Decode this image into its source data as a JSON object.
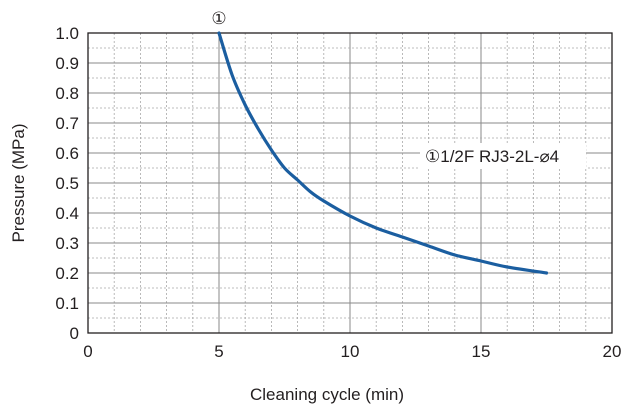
{
  "chart_data": {
    "type": "line",
    "title": "",
    "xlabel": "Cleaning cycle (min)",
    "ylabel": "Pressure (MPa)",
    "xlim": [
      0,
      20
    ],
    "ylim": [
      0,
      1.0
    ],
    "x_ticks": [
      "0",
      "5",
      "10",
      "15",
      "20"
    ],
    "y_ticks": [
      "0",
      "0.1",
      "0.2",
      "0.3",
      "0.4",
      "0.5",
      "0.6",
      "0.7",
      "0.8",
      "0.9",
      "1.0"
    ],
    "grid": "dotted minor, solid major",
    "series": [
      {
        "name": "①1/2F RJ3-2L-⌀4",
        "color": "#1b5ea0",
        "points": [
          {
            "x": 5.0,
            "y": 1.0
          },
          {
            "x": 5.5,
            "y": 0.86
          },
          {
            "x": 6.0,
            "y": 0.76
          },
          {
            "x": 6.5,
            "y": 0.68
          },
          {
            "x": 7.0,
            "y": 0.61
          },
          {
            "x": 7.5,
            "y": 0.55
          },
          {
            "x": 8.0,
            "y": 0.51
          },
          {
            "x": 8.5,
            "y": 0.47
          },
          {
            "x": 9.0,
            "y": 0.44
          },
          {
            "x": 10.0,
            "y": 0.39
          },
          {
            "x": 11.0,
            "y": 0.35
          },
          {
            "x": 12.0,
            "y": 0.32
          },
          {
            "x": 13.0,
            "y": 0.29
          },
          {
            "x": 14.0,
            "y": 0.26
          },
          {
            "x": 15.0,
            "y": 0.24
          },
          {
            "x": 16.0,
            "y": 0.22
          },
          {
            "x": 17.5,
            "y": 0.2
          }
        ]
      }
    ],
    "annotations": {
      "curve_marker": "①",
      "legend_label": "①1/2F RJ3-2L-⌀4"
    },
    "legend_position": "middle-right"
  }
}
